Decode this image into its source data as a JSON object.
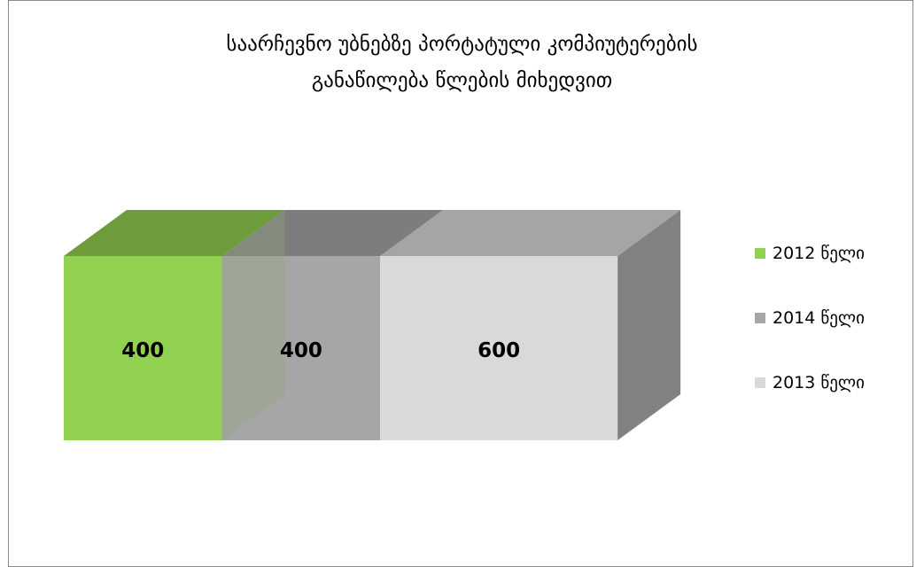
{
  "chart_data": {
    "type": "bar",
    "stacked": true,
    "orientation": "horizontal",
    "three_d": true,
    "title": "საარჩევნო უბნებზე პორტატული კომპიუტერების განაწილება წლების მიხედვით",
    "title_lines": [
      "საარჩევნო უბნებზე  პორტატული კომპიუტერების",
      "განაწილება  წლების მიხედვით"
    ],
    "series": [
      {
        "name": "2012 წელი",
        "values": [
          400
        ],
        "color": "#92d050",
        "label": "400"
      },
      {
        "name": "2014 წელი",
        "values": [
          400
        ],
        "color": "#a6a6a6",
        "label": "400"
      },
      {
        "name": "2013 წელი",
        "values": [
          600
        ],
        "color": "#d9d9d9",
        "label": "600"
      }
    ],
    "legend_position": "right",
    "grid": false,
    "axes_visible": false
  }
}
